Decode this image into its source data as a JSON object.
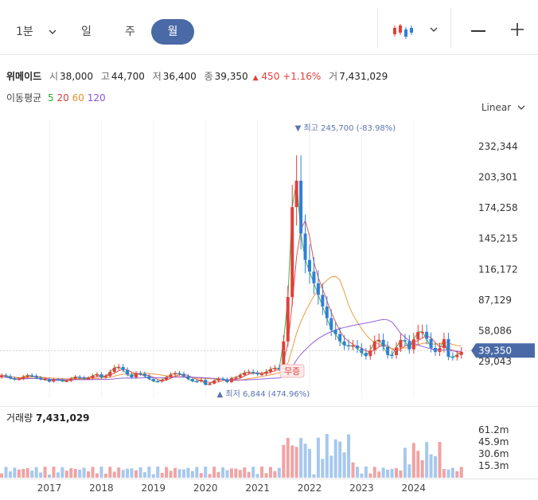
{
  "toolbar": {
    "interval_label": "1분",
    "tab_day": "일",
    "tab_week": "주",
    "tab_month": "월",
    "minus_symbol": "—",
    "plus_symbol": "+"
  },
  "stock": {
    "name": "위메이드",
    "open_label": "시",
    "open": "38,000",
    "high_label": "고",
    "high": "44,700",
    "low_label": "저",
    "low": "36,400",
    "close_label": "종",
    "close": "39,350",
    "change": "450",
    "change_pct": "+1.16%",
    "volume_label": "거",
    "volume": "7,431,029"
  },
  "moving_average": {
    "label": "이동평균",
    "periods": [
      {
        "value": "5",
        "color": "#2fa82f"
      },
      {
        "value": "20",
        "color": "#e0403b"
      },
      {
        "value": "60",
        "color": "#e8902a"
      },
      {
        "value": "120",
        "color": "#8a4fd8"
      }
    ]
  },
  "scale_label": "Linear",
  "annotations": {
    "max_label": "최고",
    "max_value": "245,700 (-83.98%)",
    "min_label": "최저",
    "min_value": "6,844 (474.96%)",
    "event_label": "무증"
  },
  "volume_panel": {
    "title": "거래량",
    "value": "7,431,029",
    "ticks": [
      "61.2m",
      "45.9m",
      "30.6m",
      "15.3m"
    ]
  },
  "colors": {
    "up": "#e0403b",
    "down": "#2f7fd8",
    "accent": "#4a6aa7",
    "vol_up": "#f0a3a3",
    "vol_down": "#a6c8ee"
  },
  "chart_data": {
    "type": "candlestick",
    "y_ticks": [
      "232,344",
      "203,301",
      "174,258",
      "145,215",
      "116,172",
      "87,129",
      "58,086",
      "29,043"
    ],
    "y_tick_values": [
      232344,
      203301,
      174258,
      145215,
      116172,
      87129,
      58086,
      29043
    ],
    "x_ticks": [
      "2017",
      "2018",
      "2019",
      "2020",
      "2021",
      "2022",
      "2023",
      "2024"
    ],
    "current_price_label": "39,350",
    "current_price": 39350,
    "all_time_high": 245700,
    "all_time_low": 6844
  }
}
